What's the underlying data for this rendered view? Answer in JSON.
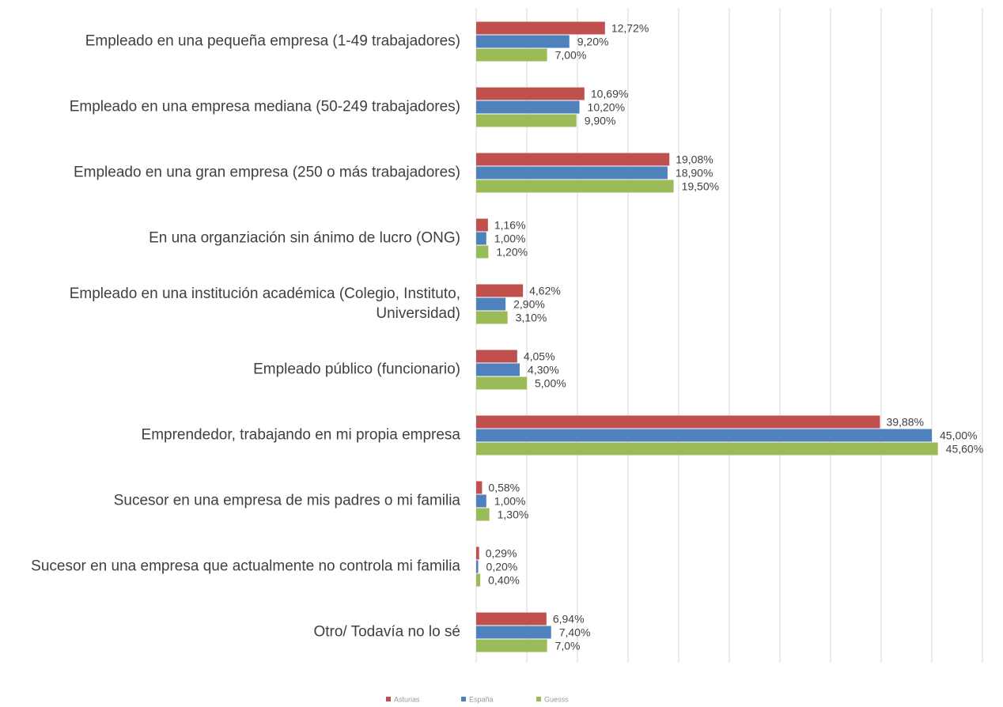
{
  "chart_data": {
    "type": "hbar",
    "categories": [
      "Empleado en una pequeña empresa (1-49 trabajadores)",
      "Empleado en una empresa mediana (50-249 trabajadores)",
      "Empleado en una gran empresa (250 o más trabajadores)",
      "En una organziación sin ánimo de lucro (ONG)",
      "Empleado en una institución académica (Colegio, Instituto, Universidad)",
      "Empleado público (funcionario)",
      "Emprendedor, trabajando en mi propia empresa",
      "Sucesor en una empresa de mis padres o mi familia",
      "Sucesor en una empresa que actualmente no controla mi familia",
      "Otro/ Todavía no lo sé"
    ],
    "series": [
      {
        "name": "Asturias",
        "color": "#c0504d",
        "values": [
          12.72,
          10.69,
          19.08,
          1.16,
          4.62,
          4.05,
          39.88,
          0.58,
          0.29,
          6.94
        ],
        "value_labels": [
          "12,72%",
          "10,69%",
          "19,08%",
          "1,16%",
          "4,62%",
          "4,05%",
          "39,88%",
          "0,58%",
          "0,29%",
          "6,94%"
        ]
      },
      {
        "name": "España",
        "color": "#4f81bd",
        "values": [
          9.2,
          10.2,
          18.9,
          1.0,
          2.9,
          4.3,
          45.0,
          1.0,
          0.2,
          7.4
        ],
        "value_labels": [
          "9,20%",
          "10,20%",
          "18,90%",
          "1,00%",
          "2,90%",
          "4,30%",
          "45,00%",
          "1,00%",
          "0,20%",
          "7,40%"
        ]
      },
      {
        "name": "Guesss",
        "color": "#9bbb59",
        "values": [
          7.0,
          9.9,
          19.5,
          1.2,
          3.1,
          5.0,
          45.6,
          1.3,
          0.4,
          7.0
        ],
        "value_labels": [
          "7,00%",
          "9,90%",
          "19,50%",
          "1,20%",
          "3,10%",
          "5,00%",
          "45,60%",
          "1,30%",
          "0,40%",
          "7,0%"
        ]
      }
    ],
    "xlim": [
      0,
      50
    ],
    "xticks": [
      0,
      5,
      10,
      15,
      20,
      25,
      30,
      35,
      40,
      45,
      50
    ],
    "grid": true,
    "legend": "bottom"
  }
}
